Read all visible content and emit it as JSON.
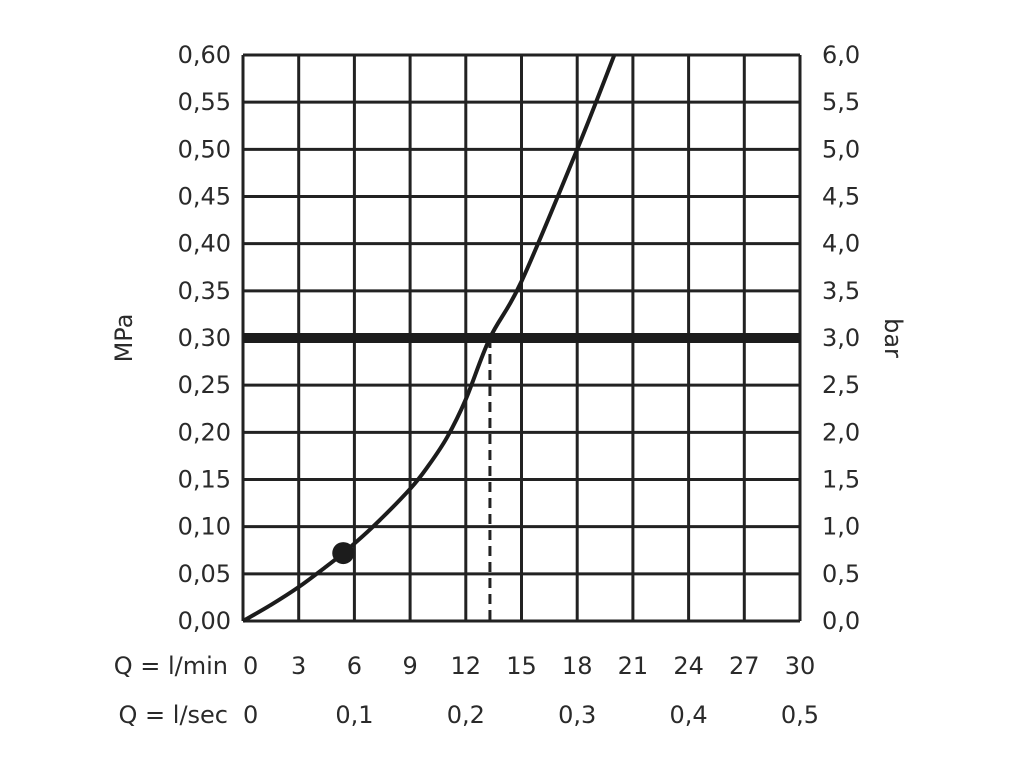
{
  "chart_data": {
    "type": "line",
    "title": "",
    "ylabel_left": "MPa",
    "ylabel_right": "bar",
    "x_row_labels": [
      "Q = l/min",
      "Q = l/sec"
    ],
    "x_unit": "l/min",
    "xlim": [
      0,
      30
    ],
    "ylim": [
      0,
      0.6
    ],
    "x_ticks_lmin": [
      "0",
      "3",
      "6",
      "9",
      "12",
      "15",
      "18",
      "21",
      "24",
      "27",
      "30"
    ],
    "x_ticks_lsec": [
      {
        "x": 0,
        "label": "0"
      },
      {
        "x": 6,
        "label": "0,1"
      },
      {
        "x": 12,
        "label": "0,2"
      },
      {
        "x": 18,
        "label": "0,3"
      },
      {
        "x": 24,
        "label": "0,4"
      },
      {
        "x": 30,
        "label": "0,5"
      }
    ],
    "y_ticks_left": [
      "0,00",
      "0,05",
      "0,10",
      "0,15",
      "0,20",
      "0,25",
      "0,30",
      "0,35",
      "0,40",
      "0,45",
      "0,50",
      "0,55",
      "0,60"
    ],
    "y_ticks_right": [
      "0,0",
      "0,5",
      "1,0",
      "1,5",
      "2,0",
      "2,5",
      "3,0",
      "3,5",
      "4,0",
      "4,5",
      "5,0",
      "5,5",
      "6,0"
    ],
    "grid": true,
    "series": [
      {
        "x": [
          0,
          1.5,
          3,
          4.5,
          5.4,
          7,
          9,
          10,
          11,
          12,
          13.3,
          15,
          18,
          20
        ],
        "y": [
          0,
          0.017,
          0.036,
          0.058,
          0.072,
          0.1,
          0.14,
          0.165,
          0.195,
          0.235,
          0.3,
          0.36,
          0.5,
          0.6
        ]
      }
    ],
    "marker": {
      "x": 5.4,
      "y": 0.072
    },
    "reference_line": {
      "y": 0.3
    },
    "operating_point_dashed": {
      "x": 13.3,
      "y": 0.3
    }
  }
}
